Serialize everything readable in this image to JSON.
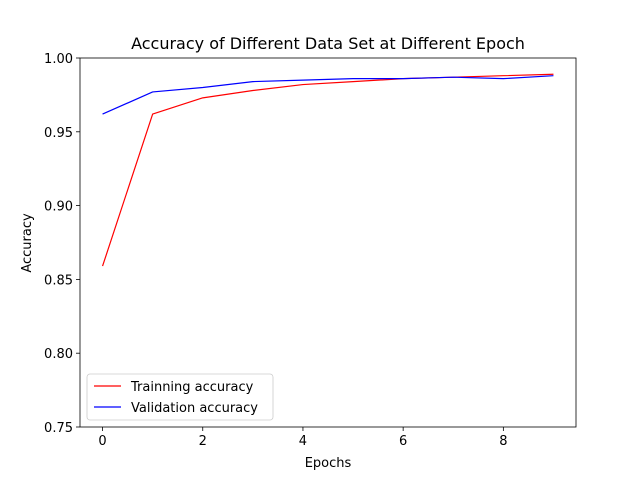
{
  "chart_data": {
    "type": "line",
    "title": "Accuracy of Different Data Set at Different Epoch",
    "xlabel": "Epochs",
    "ylabel": "Accuracy",
    "x": [
      0,
      1,
      2,
      3,
      4,
      5,
      6,
      7,
      8,
      9
    ],
    "xlim": [
      -0.45,
      9.45
    ],
    "ylim": [
      0.75,
      1.0
    ],
    "xticks": [
      0,
      2,
      4,
      6,
      8
    ],
    "xtick_labels": [
      "0",
      "2",
      "4",
      "6",
      "8"
    ],
    "yticks": [
      0.75,
      0.8,
      0.85,
      0.9,
      0.95,
      1.0
    ],
    "ytick_labels": [
      "0.75",
      "0.80",
      "0.85",
      "0.90",
      "0.95",
      "1.00"
    ],
    "grid": false,
    "legend_position": "lower-left",
    "series": [
      {
        "name": "Trainning accuracy",
        "color": "#ff0000",
        "values": [
          0.859,
          0.962,
          0.973,
          0.978,
          0.982,
          0.984,
          0.986,
          0.987,
          0.988,
          0.989
        ]
      },
      {
        "name": "Validation accuracy",
        "color": "#0000ff",
        "values": [
          0.962,
          0.977,
          0.98,
          0.984,
          0.985,
          0.986,
          0.986,
          0.987,
          0.986,
          0.988
        ]
      }
    ]
  }
}
